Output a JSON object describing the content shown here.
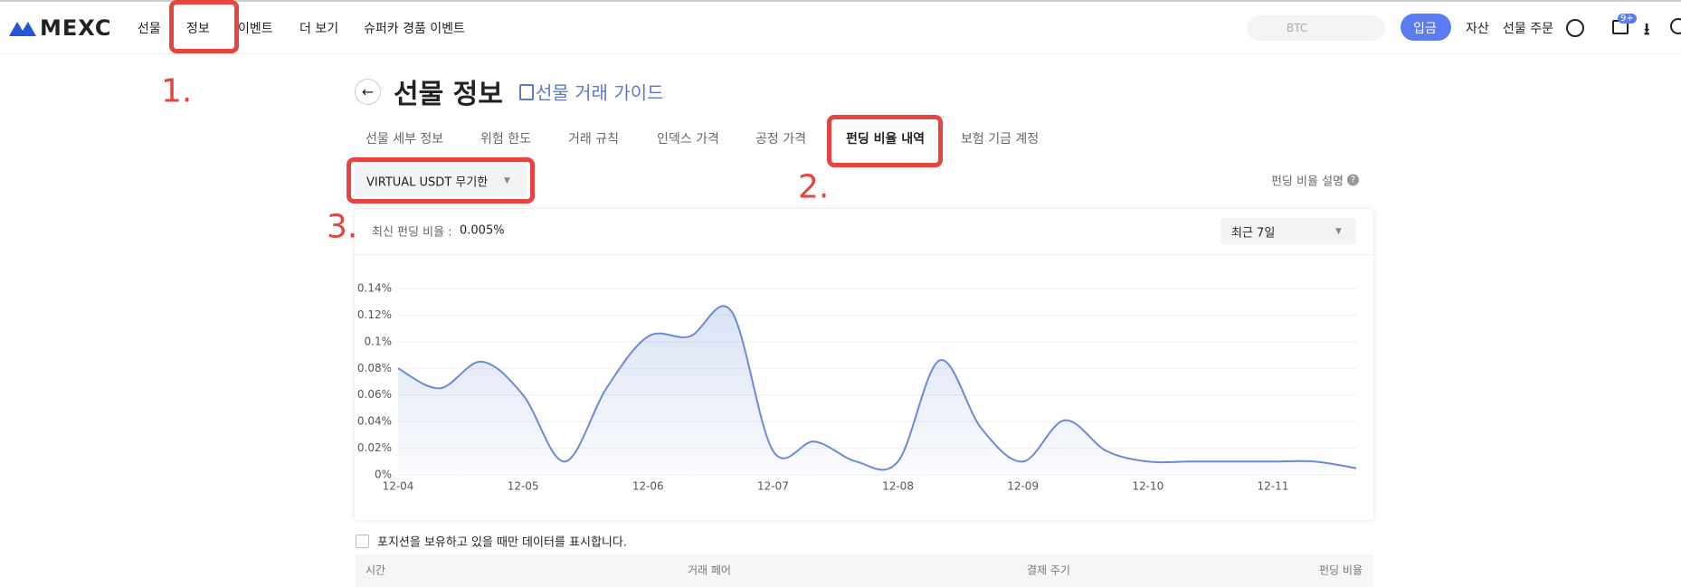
{
  "nav": {
    "logo": "MEXC",
    "items": [
      "선물",
      "정보",
      "이벤트",
      "더 보기",
      "슈퍼카 경품 이벤트"
    ],
    "search": "BTC",
    "deposit": "입금",
    "assets": "자산",
    "orders": "선물 주문",
    "badge": "9+"
  },
  "header": {
    "title": "선물 정보",
    "guide": "선물 거래 가이드"
  },
  "tabs": [
    "선물 세부 정보",
    "위험 한도",
    "거래 규칙",
    "인덱스 가격",
    "공정 가격",
    "펀딩 비율 내역",
    "보험 기금 계정"
  ],
  "selector": "VIRTUAL USDT 무기한",
  "explain": "펀딩 비율 설명",
  "latest": {
    "label": "최신 펀딩 비율 :",
    "value": "0.005%"
  },
  "range": "최근 7일",
  "chart_data": {
    "type": "line",
    "categories": [
      "12-04",
      null,
      null,
      "12-05",
      null,
      null,
      "12-06",
      null,
      null,
      "12-07",
      null,
      null,
      "12-08",
      null,
      null,
      "12-09",
      null,
      null,
      "12-10",
      null,
      null,
      "12-11",
      null,
      null
    ],
    "values": [
      0.08,
      0.065,
      0.085,
      0.06,
      0.01,
      0.065,
      0.104,
      0.104,
      0.123,
      0.018,
      0.025,
      0.01,
      0.01,
      0.086,
      0.035,
      0.01,
      0.041,
      0.018,
      0.01,
      0.01,
      0.01,
      0.01,
      0.01,
      0.005
    ],
    "color": "#6b8bd6",
    "ylim": [
      0,
      0.14
    ],
    "yticks": [
      {
        "value": 0,
        "label": "0%"
      },
      {
        "value": 0.02,
        "label": "0.02%"
      },
      {
        "value": 0.04,
        "label": "0.04%"
      },
      {
        "value": 0.06,
        "label": "0.06%"
      },
      {
        "value": 0.08,
        "label": "0.08%"
      },
      {
        "value": 0.1,
        "label": "0.1%"
      },
      {
        "value": 0.12,
        "label": "0.12%"
      },
      {
        "value": 0.14,
        "label": "0.14%"
      }
    ],
    "grid": true
  },
  "checkbox": "포지션을 보유하고 있을 때만 데이터를 표시합니다.",
  "table": {
    "columns": [
      "시간",
      "거래 페어",
      "결제 주기",
      "펀딩 비율"
    ]
  },
  "annotations": [
    "1.",
    "2.",
    "3."
  ]
}
